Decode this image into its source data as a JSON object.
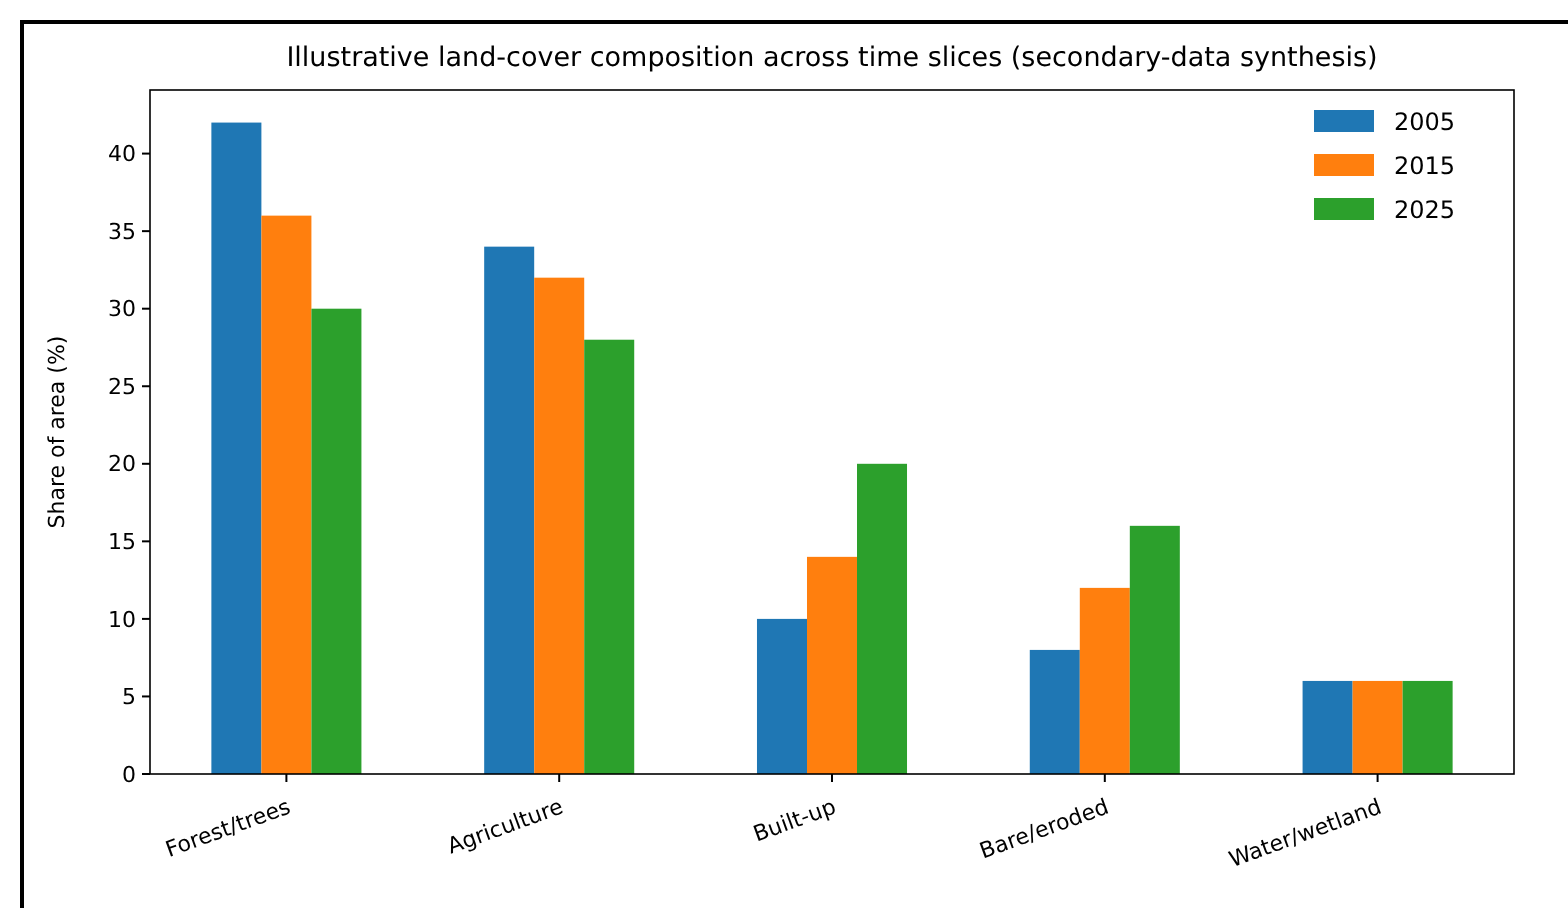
{
  "chart_data": {
    "type": "bar",
    "title": "Illustrative land-cover composition across time slices (secondary-data synthesis)",
    "ylabel": "Share of area (%)",
    "categories": [
      "Forest/trees",
      "Agriculture",
      "Built-up",
      "Bare/eroded",
      "Water/wetland"
    ],
    "series": [
      {
        "name": "2005",
        "color": "#1f77b4",
        "values": [
          42,
          34,
          10,
          8,
          6
        ]
      },
      {
        "name": "2015",
        "color": "#ff7f0e",
        "values": [
          36,
          32,
          14,
          12,
          6
        ]
      },
      {
        "name": "2025",
        "color": "#2ca02c",
        "values": [
          30,
          28,
          20,
          16,
          6
        ]
      }
    ],
    "ylim": [
      0,
      44.1
    ],
    "yticks": [
      0,
      5,
      10,
      15,
      20,
      25,
      30,
      35,
      40
    ],
    "grid": false,
    "legend": "top right"
  }
}
